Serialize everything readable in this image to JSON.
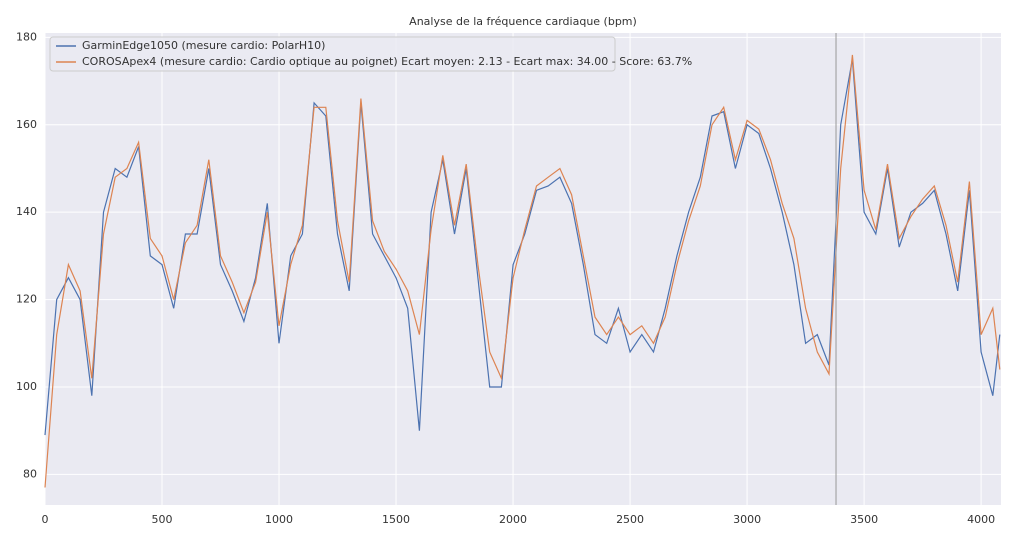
{
  "chart_data": {
    "type": "line",
    "title": "Analyse de la fréquence cardiaque (bpm)",
    "x": [
      0,
      50,
      100,
      150,
      200,
      250,
      300,
      350,
      400,
      450,
      500,
      550,
      600,
      650,
      700,
      750,
      800,
      850,
      900,
      950,
      1000,
      1050,
      1100,
      1150,
      1200,
      1250,
      1300,
      1350,
      1400,
      1450,
      1500,
      1550,
      1600,
      1650,
      1700,
      1750,
      1800,
      1850,
      1900,
      1950,
      2000,
      2050,
      2100,
      2150,
      2200,
      2250,
      2300,
      2350,
      2400,
      2450,
      2500,
      2550,
      2600,
      2650,
      2700,
      2750,
      2800,
      2850,
      2900,
      2950,
      3000,
      3050,
      3100,
      3150,
      3200,
      3250,
      3300,
      3350,
      3400,
      3450,
      3500,
      3550,
      3600,
      3650,
      3700,
      3750,
      3800,
      3850,
      3900,
      3950,
      4000,
      4050,
      4080
    ],
    "series": [
      {
        "name": "GarminEdge1050 (mesure cardio: PolarH10)",
        "color": "#4c72b0",
        "values": [
          89,
          120,
          125,
          120,
          98,
          140,
          150,
          148,
          155,
          130,
          128,
          118,
          135,
          135,
          150,
          128,
          122,
          115,
          125,
          142,
          110,
          130,
          135,
          165,
          162,
          135,
          122,
          165,
          135,
          130,
          125,
          118,
          90,
          140,
          152,
          135,
          150,
          125,
          100,
          100,
          128,
          135,
          145,
          146,
          148,
          142,
          128,
          112,
          110,
          118,
          108,
          112,
          108,
          118,
          130,
          140,
          148,
          162,
          163,
          150,
          160,
          158,
          150,
          140,
          128,
          110,
          112,
          105,
          160,
          175,
          140,
          135,
          150,
          132,
          140,
          142,
          145,
          135,
          122,
          145,
          108,
          98,
          112
        ]
      },
      {
        "name": "COROSApex4 (mesure cardio: Cardio optique au poignet) Ecart moyen: 2.13 - Ecart max: 34.00 - Score: 63.7%",
        "color": "#dd8452",
        "values": [
          77,
          112,
          128,
          122,
          102,
          135,
          148,
          150,
          156,
          134,
          130,
          120,
          133,
          137,
          152,
          130,
          124,
          117,
          124,
          140,
          114,
          128,
          137,
          164,
          164,
          138,
          124,
          166,
          138,
          131,
          127,
          122,
          112,
          136,
          153,
          137,
          151,
          128,
          108,
          102,
          125,
          136,
          146,
          148,
          150,
          144,
          130,
          116,
          112,
          116,
          112,
          114,
          110,
          116,
          128,
          138,
          146,
          160,
          164,
          152,
          161,
          159,
          152,
          142,
          134,
          118,
          108,
          103,
          150,
          176,
          145,
          136,
          151,
          134,
          139,
          143,
          146,
          137,
          124,
          147,
          112,
          118,
          104
        ]
      }
    ],
    "xlim": [
      0,
      4085
    ],
    "ylim": [
      73,
      181
    ],
    "xticks": [
      0,
      500,
      1000,
      1500,
      2000,
      2500,
      3000,
      3500,
      4000
    ],
    "yticks": [
      80,
      100,
      120,
      140,
      160,
      180
    ],
    "vline": 3380,
    "grid": true,
    "legend": "upper left"
  }
}
